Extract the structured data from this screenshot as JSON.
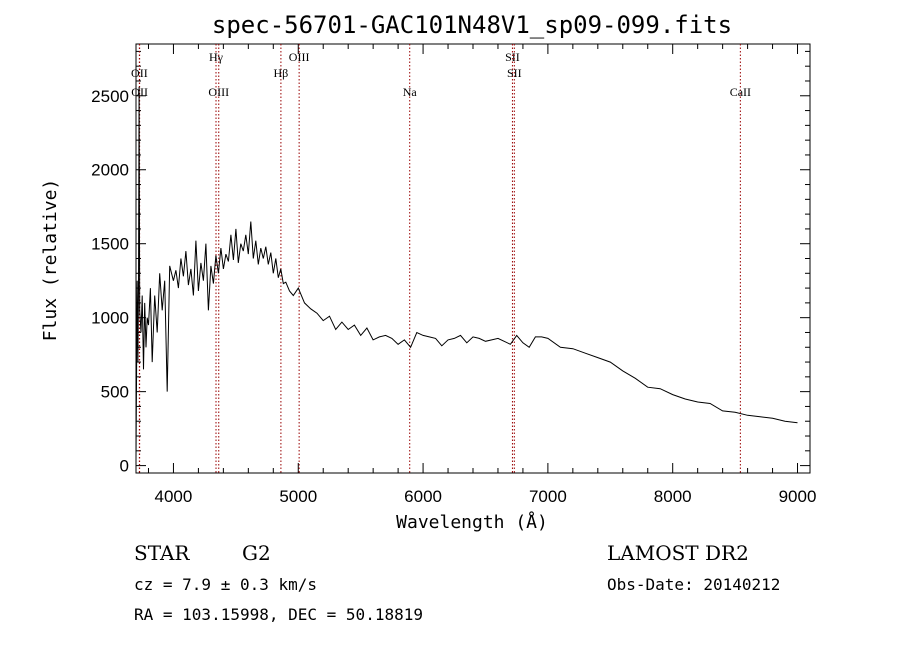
{
  "chart_data": {
    "type": "line",
    "title": "spec-56701-GAC101N48V1_sp09-099.fits",
    "xlabel": "Wavelength (Å)",
    "ylabel": "Flux (relative)",
    "xlim": [
      3700,
      9100
    ],
    "ylim": [
      -50,
      2850
    ],
    "x_ticks": [
      4000,
      5000,
      6000,
      7000,
      8000,
      9000
    ],
    "y_ticks": [
      0,
      500,
      1000,
      1500,
      2000,
      2500
    ],
    "grid": false,
    "series": [
      {
        "x": [
          3700,
          3710,
          3715,
          3720,
          3725,
          3730,
          3740,
          3750,
          3760,
          3770,
          3780,
          3790,
          3800,
          3815,
          3830,
          3850,
          3870,
          3890,
          3910,
          3930,
          3950,
          3970,
          4000,
          4020,
          4040,
          4060,
          4080,
          4100,
          4120,
          4140,
          4160,
          4180,
          4200,
          4220,
          4240,
          4260,
          4280,
          4300,
          4320,
          4340,
          4360,
          4380,
          4400,
          4420,
          4440,
          4460,
          4480,
          4500,
          4520,
          4540,
          4560,
          4580,
          4600,
          4620,
          4640,
          4660,
          4680,
          4700,
          4720,
          4740,
          4760,
          4780,
          4800,
          4820,
          4840,
          4860,
          4880,
          4900,
          4930,
          4960,
          5000,
          5050,
          5100,
          5150,
          5200,
          5250,
          5300,
          5350,
          5400,
          5450,
          5500,
          5550,
          5600,
          5650,
          5700,
          5750,
          5800,
          5850,
          5900,
          5950,
          6000,
          6050,
          6100,
          6150,
          6200,
          6250,
          6300,
          6350,
          6400,
          6450,
          6500,
          6550,
          6600,
          6650,
          6700,
          6750,
          6800,
          6850,
          6900,
          6950,
          7000,
          7100,
          7200,
          7300,
          7400,
          7500,
          7600,
          7700,
          7800,
          7900,
          8000,
          8100,
          8200,
          8300,
          8400,
          8500,
          8600,
          8700,
          8800,
          8900,
          9000
        ],
        "values": [
          50,
          1250,
          700,
          1200,
          2560,
          1050,
          900,
          1150,
          650,
          1100,
          800,
          1000,
          950,
          1200,
          700,
          1150,
          900,
          1300,
          1050,
          1250,
          500,
          1350,
          1250,
          1320,
          1200,
          1400,
          1280,
          1450,
          1220,
          1330,
          1150,
          1520,
          1180,
          1370,
          1250,
          1500,
          1050,
          1350,
          1230,
          1420,
          1300,
          1470,
          1330,
          1430,
          1380,
          1560,
          1390,
          1600,
          1370,
          1500,
          1450,
          1560,
          1430,
          1650,
          1400,
          1520,
          1360,
          1470,
          1400,
          1480,
          1360,
          1440,
          1300,
          1400,
          1270,
          1330,
          1230,
          1240,
          1180,
          1150,
          1200,
          1100,
          1060,
          1030,
          980,
          1010,
          920,
          970,
          920,
          950,
          880,
          930,
          850,
          870,
          880,
          860,
          820,
          850,
          800,
          900,
          880,
          870,
          860,
          810,
          850,
          860,
          880,
          830,
          870,
          860,
          840,
          850,
          860,
          840,
          820,
          880,
          830,
          800,
          870,
          870,
          860,
          800,
          790,
          760,
          730,
          700,
          640,
          590,
          530,
          520,
          480,
          450,
          430,
          420,
          370,
          360,
          340,
          330,
          320,
          300,
          290
        ]
      }
    ],
    "lines": [
      {
        "name": "OII",
        "wave": 3727,
        "row": 1
      },
      {
        "name": "OII",
        "wave": 3729,
        "row": 2
      },
      {
        "name": "Hγ",
        "wave": 4341,
        "row": 0
      },
      {
        "name": "OIII",
        "wave": 4363,
        "row": 2
      },
      {
        "name": "Hβ",
        "wave": 4861,
        "row": 1
      },
      {
        "name": "OIII",
        "wave": 5007,
        "row": 0
      },
      {
        "name": "Na",
        "wave": 5893,
        "row": 2
      },
      {
        "name": "SII",
        "wave": 6716,
        "row": 0
      },
      {
        "name": "SII",
        "wave": 6731,
        "row": 1
      },
      {
        "name": "CaII",
        "wave": 8542,
        "row": 2
      }
    ],
    "line_color": "#990000"
  },
  "info": {
    "class": "STAR",
    "subclass": "G2",
    "survey": "LAMOST DR2",
    "cz": "cz = 7.9 ± 0.3 km/s",
    "obs_date": "Obs-Date: 20140212",
    "coords": "RA = 103.15998, DEC =  50.18819"
  }
}
